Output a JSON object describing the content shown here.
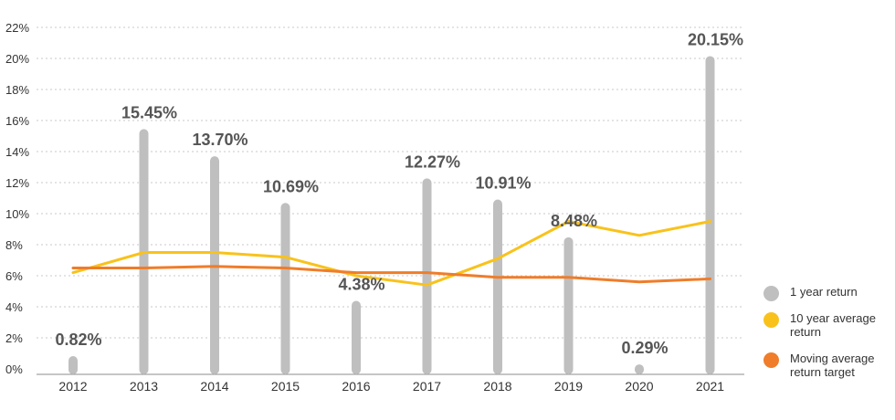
{
  "chart_data": {
    "type": "bar+line",
    "title": "",
    "xlabel": "",
    "ylabel": "",
    "ylim": [
      0,
      22
    ],
    "yticks": [
      0,
      2,
      4,
      6,
      8,
      10,
      12,
      14,
      16,
      18,
      20,
      22
    ],
    "ytick_labels": [
      "0%",
      "2%",
      "4%",
      "6%",
      "8%",
      "10%",
      "12%",
      "14%",
      "16%",
      "18%",
      "20%",
      "22%"
    ],
    "grid": true,
    "legend_position": "right",
    "categories": [
      "2012",
      "2013",
      "2014",
      "2015",
      "2016",
      "2017",
      "2018",
      "2019",
      "2020",
      "2021"
    ],
    "series": [
      {
        "name": "1 year return",
        "kind": "bar",
        "color": "#bfbfbf",
        "values": [
          0.82,
          15.45,
          13.7,
          10.69,
          4.38,
          12.27,
          10.91,
          8.48,
          0.29,
          20.15
        ],
        "labels": [
          "0.82%",
          "15.45%",
          "13.70%",
          "10.69%",
          "4.38%",
          "12.27%",
          "10.91%",
          "8.48%",
          "0.29%",
          "20.15%"
        ]
      },
      {
        "name": "10 year average return",
        "kind": "line",
        "color": "#f9c21b",
        "values": [
          6.2,
          7.5,
          7.5,
          7.2,
          6.0,
          5.4,
          7.1,
          9.5,
          8.6,
          9.5
        ]
      },
      {
        "name": "Moving average return target",
        "kind": "line",
        "color": "#ef7d2a",
        "values": [
          6.5,
          6.5,
          6.6,
          6.5,
          6.2,
          6.2,
          5.9,
          5.9,
          5.6,
          5.8
        ]
      }
    ]
  },
  "legend": {
    "items": [
      {
        "label": "1 year return",
        "color": "#bfbfbf"
      },
      {
        "label": "10 year average return",
        "color": "#f9c21b"
      },
      {
        "label": "Moving average return target",
        "color": "#ef7d2a"
      }
    ]
  }
}
